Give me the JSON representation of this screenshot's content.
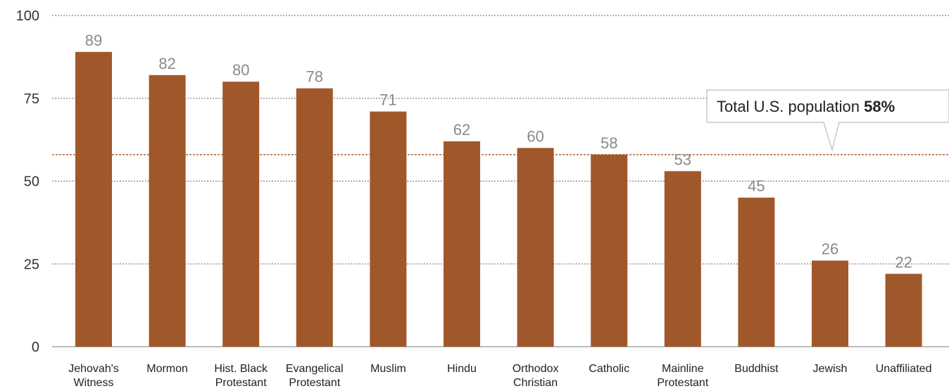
{
  "chart_data": {
    "type": "bar",
    "categories": [
      [
        "Jehovah's",
        "Witness"
      ],
      [
        "Mormon"
      ],
      [
        "Hist. Black",
        "Protestant"
      ],
      [
        "Evangelical",
        "Protestant"
      ],
      [
        "Muslim"
      ],
      [
        "Hindu"
      ],
      [
        "Orthodox",
        "Christian"
      ],
      [
        "Catholic"
      ],
      [
        "Mainline",
        "Protestant"
      ],
      [
        "Buddhist"
      ],
      [
        "Jewish"
      ],
      [
        "Unaffiliated"
      ]
    ],
    "values": [
      89,
      82,
      80,
      78,
      71,
      62,
      60,
      58,
      53,
      45,
      26,
      22
    ],
    "data_labels": [
      "89",
      "82",
      "80",
      "78",
      "71",
      "62",
      "60",
      "58",
      "53",
      "45",
      "26",
      "22"
    ],
    "yticks": [
      0,
      25,
      50,
      75,
      100
    ],
    "ytick_labels": [
      "0",
      "25",
      "50",
      "75",
      "100"
    ],
    "ylim": [
      0,
      100
    ],
    "grid": true,
    "bar_color": "#a0572a",
    "reference_line": {
      "value": 58,
      "color": "#b3622e",
      "label_prefix": "Total U.S. population",
      "label_value": "58%"
    }
  }
}
